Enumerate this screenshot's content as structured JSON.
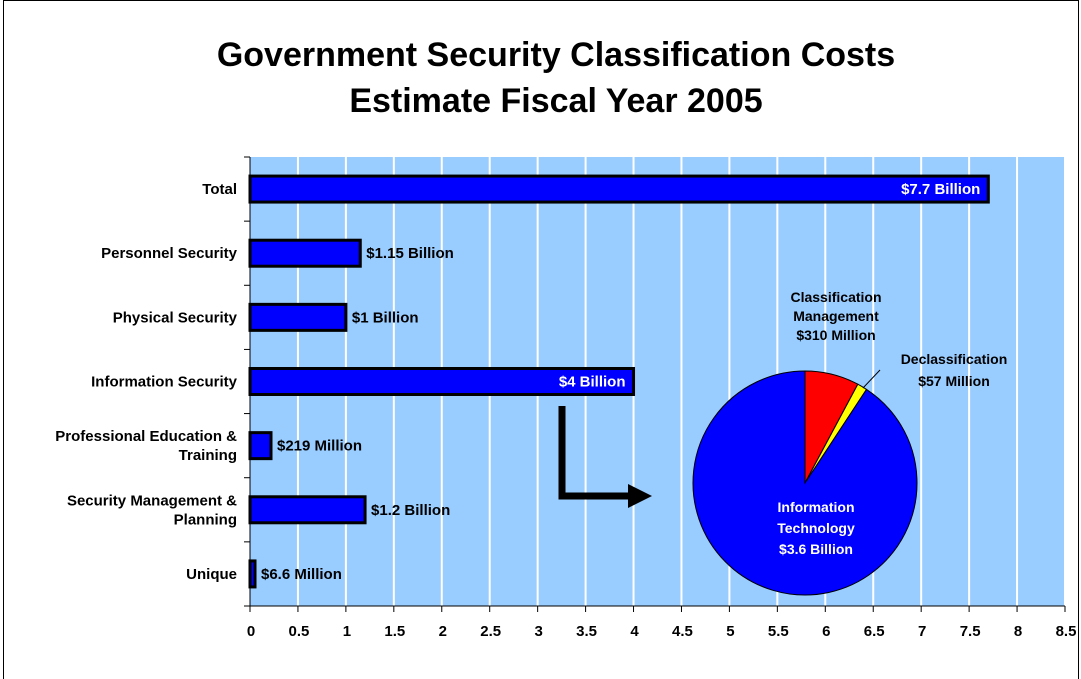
{
  "chart_data": {
    "type": "bar",
    "orientation": "horizontal",
    "title_lines": [
      "Government Security Classification Costs",
      "Estimate Fiscal Year 2005"
    ],
    "categories": [
      [
        "Total"
      ],
      [
        "Personnel Security"
      ],
      [
        "Physical Security"
      ],
      [
        "Information Security"
      ],
      [
        "Professional Education &",
        "Training"
      ],
      [
        "Security Management &",
        "Planning"
      ],
      [
        "Unique"
      ]
    ],
    "values": [
      7.7,
      1.15,
      1.0,
      4.0,
      0.219,
      1.2,
      0.0066
    ],
    "data_labels": [
      "$7.7 Billion",
      "$1.15 Billion",
      "$1 Billion",
      "$4 Billion",
      "$219 Million",
      "$1.2 Billion",
      "$6.6 Million"
    ],
    "data_label_inside": [
      true,
      false,
      false,
      true,
      false,
      false,
      false
    ],
    "xlim": [
      0,
      8.5
    ],
    "xticks": [
      "0",
      "0.5",
      "1",
      "1.5",
      "2",
      "2.5",
      "3",
      "3.5",
      "4",
      "4.5",
      "5",
      "5.5",
      "6",
      "6.5",
      "7",
      "7.5",
      "8",
      "8.5"
    ],
    "grid": true,
    "colors": {
      "plot_bg": "#99ccff",
      "grid": "#ffffff",
      "bar": "#0000ff",
      "bar_border": "#000000"
    },
    "inset_pie": {
      "type": "pie",
      "source_category": "Information Security",
      "slices": [
        {
          "label_lines": [
            "Classification",
            "Management",
            "$310 Million"
          ],
          "value": 310,
          "color": "#ff0000"
        },
        {
          "label_lines": [
            "Declassification",
            "$57 Million"
          ],
          "value": 57,
          "color": "#ffff00"
        },
        {
          "label_lines": [
            "Information",
            "Technology",
            "$3.6 Billion"
          ],
          "value": 3600,
          "color": "#0000ff"
        }
      ]
    }
  }
}
